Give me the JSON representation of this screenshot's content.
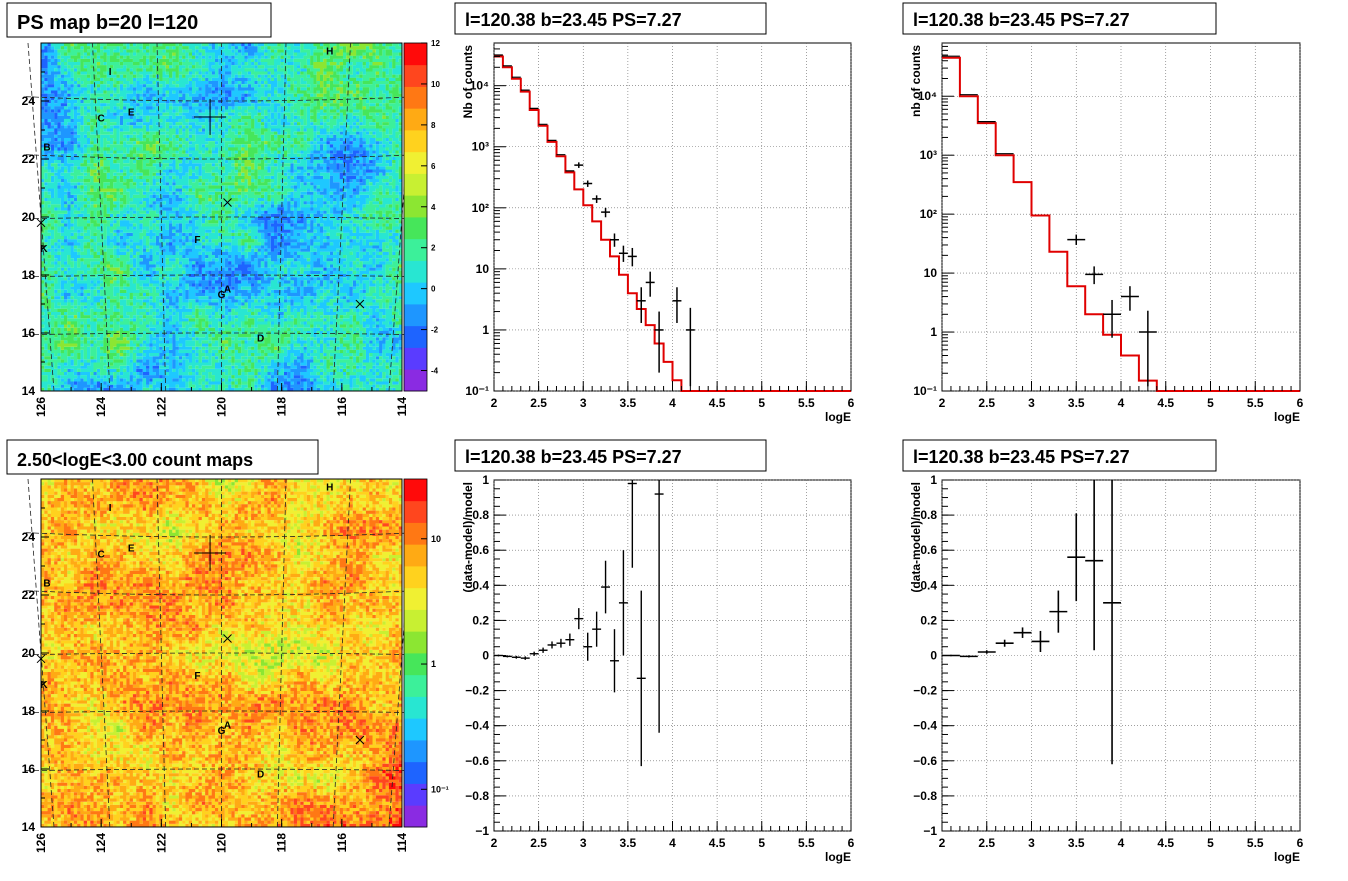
{
  "panels": {
    "ps_map": {
      "title": "PS map b=20 l=120",
      "colorbar_ticks": [
        "-4",
        "-2",
        "0",
        "2",
        "4",
        "6",
        "8",
        "10",
        "12"
      ],
      "colorbar_colors": [
        "#8a2be2",
        "#5a3cff",
        "#1e64ff",
        "#1e96ff",
        "#1ec8ff",
        "#28e6d2",
        "#3cf09a",
        "#46e65a",
        "#8ce632",
        "#c8f032",
        "#f0f032",
        "#ffd21e",
        "#ffaa14",
        "#ff7814",
        "#ff461e",
        "#ff0a0a"
      ]
    },
    "count_map": {
      "title": "2.50<logE<3.00 count maps",
      "colorbar_ticks": [
        "10",
        "1",
        "10⁻¹"
      ],
      "colorbar_colors": [
        "#8a2be2",
        "#5a3cff",
        "#1e64ff",
        "#1e96ff",
        "#1ec8ff",
        "#28e6d2",
        "#3cf09a",
        "#46e65a",
        "#8ce632",
        "#c8f032",
        "#f0f032",
        "#ffd21e",
        "#ffaa14",
        "#ff7814",
        "#ff461e",
        "#ff0a0a"
      ]
    },
    "spec1": {
      "title": "l=120.38 b=23.45 PS=7.27",
      "ylabel": "Nb of counts"
    },
    "spec2": {
      "title": "l=120.38 b=23.45 PS=7.27",
      "ylabel": "nb of counts"
    },
    "res1": {
      "title": "l=120.38 b=23.45 PS=7.27"
    },
    "res2": {
      "title": "l=120.38 b=23.45 PS=7.27"
    }
  },
  "chart_data": [
    {
      "type": "heatmap",
      "title": "PS map b=20 l=120",
      "xlim": [
        126,
        114
      ],
      "ylim": [
        14,
        26
      ],
      "x_ticks": [
        126,
        124,
        122,
        120,
        118,
        116,
        114
      ],
      "y_ticks": [
        14,
        16,
        18,
        20,
        22,
        24
      ],
      "zlim": [
        -5,
        12
      ],
      "color_scale": "linear",
      "source_labels": [
        {
          "text": "H",
          "l": 116.4,
          "b": 25.6
        },
        {
          "text": "I",
          "l": 123.7,
          "b": 24.9
        },
        {
          "text": "C",
          "l": 124.0,
          "b": 23.3
        },
        {
          "text": "E",
          "l": 123.0,
          "b": 23.5
        },
        {
          "text": "B",
          "l": 125.8,
          "b": 22.3
        },
        {
          "text": "F",
          "l": 120.8,
          "b": 19.1
        },
        {
          "text": "K",
          "l": 125.9,
          "b": 18.8
        },
        {
          "text": "A",
          "l": 119.8,
          "b": 17.4
        },
        {
          "text": "G",
          "l": 120.0,
          "b": 17.2
        },
        {
          "text": "D",
          "l": 118.7,
          "b": 15.7
        }
      ],
      "plus_marker": {
        "l": 120.38,
        "b": 23.45
      },
      "x_markers": [
        {
          "l": 119.8,
          "b": 20.5
        },
        {
          "l": 115.4,
          "b": 17.0
        },
        {
          "l": 126.0,
          "b": 19.8
        }
      ]
    },
    {
      "type": "heatmap",
      "title": "2.50<logE<3.00 count maps",
      "xlim": [
        126,
        114
      ],
      "ylim": [
        14,
        26
      ],
      "x_ticks": [
        126,
        124,
        122,
        120,
        118,
        116,
        114
      ],
      "y_ticks": [
        14,
        16,
        18,
        20,
        22,
        24
      ],
      "color_scale": "log",
      "zlim": [
        0.05,
        30
      ],
      "source_labels": [
        {
          "text": "H",
          "l": 116.4,
          "b": 25.6
        },
        {
          "text": "I",
          "l": 123.7,
          "b": 24.9
        },
        {
          "text": "C",
          "l": 124.0,
          "b": 23.3
        },
        {
          "text": "E",
          "l": 123.0,
          "b": 23.5
        },
        {
          "text": "B",
          "l": 125.8,
          "b": 22.3
        },
        {
          "text": "F",
          "l": 120.8,
          "b": 19.1
        },
        {
          "text": "K",
          "l": 125.9,
          "b": 18.8
        },
        {
          "text": "A",
          "l": 119.8,
          "b": 17.4
        },
        {
          "text": "G",
          "l": 120.0,
          "b": 17.2
        },
        {
          "text": "D",
          "l": 118.7,
          "b": 15.7
        }
      ],
      "plus_marker": {
        "l": 120.38,
        "b": 23.45
      },
      "x_markers": [
        {
          "l": 119.8,
          "b": 20.5
        },
        {
          "l": 115.4,
          "b": 17.0
        },
        {
          "l": 126.0,
          "b": 19.8
        }
      ]
    },
    {
      "type": "line",
      "title": "l=120.38 b=23.45 PS=7.27",
      "xlabel": "logE",
      "ylabel": "Nb of counts",
      "xlim": [
        2,
        6
      ],
      "ylim": [
        0.1,
        50000
      ],
      "yscale": "log",
      "grid": true,
      "x_ticks": [
        "2",
        "2.5",
        "3",
        "3.5",
        "4",
        "4.5",
        "5",
        "5.5",
        "6"
      ],
      "y_ticks": [
        {
          "v": 0.1,
          "label": "10⁻¹"
        },
        {
          "v": 1,
          "label": "1"
        },
        {
          "v": 10,
          "label": "10"
        },
        {
          "v": 100,
          "label": "10²"
        },
        {
          "v": 1000,
          "label": "10³"
        },
        {
          "v": 10000,
          "label": "10⁴"
        }
      ],
      "bin_width": 0.1,
      "model": [
        30000,
        20000,
        13000,
        8000,
        4000,
        2200,
        1200,
        700,
        380,
        200,
        110,
        60,
        30,
        16,
        8,
        4,
        2.2,
        1.2,
        0.6,
        0.3,
        0.15,
        0.1,
        0.1,
        0.1,
        0.1,
        0.1,
        0.1,
        0.1,
        0.1,
        0.1,
        0.1,
        0.1,
        0.1,
        0.1,
        0.1,
        0.1,
        0.1,
        0.1,
        0.1,
        0.1
      ],
      "data_points": [
        {
          "x": 2.95,
          "y": 500,
          "err": [
            450,
            555
          ]
        },
        {
          "x": 3.05,
          "y": 250,
          "err": [
            220,
            280
          ]
        },
        {
          "x": 3.15,
          "y": 140,
          "err": [
            120,
            160
          ]
        },
        {
          "x": 3.25,
          "y": 85,
          "err": [
            70,
            100
          ]
        },
        {
          "x": 3.35,
          "y": 30,
          "err": [
            23,
            38
          ]
        },
        {
          "x": 3.45,
          "y": 18,
          "err": [
            13,
            24
          ]
        },
        {
          "x": 3.55,
          "y": 16,
          "err": [
            11,
            22
          ]
        },
        {
          "x": 3.65,
          "y": 3,
          "err": [
            1.3,
            5
          ]
        },
        {
          "x": 3.75,
          "y": 6,
          "err": [
            3.5,
            9
          ]
        },
        {
          "x": 3.85,
          "y": 1,
          "err": [
            0.2,
            2
          ]
        },
        {
          "x": 4.05,
          "y": 3,
          "err": [
            1.3,
            5
          ]
        },
        {
          "x": 4.2,
          "y": 1,
          "err": [
            0.12,
            2.3
          ]
        }
      ]
    },
    {
      "type": "line",
      "title": "l=120.38 b=23.45 PS=7.27",
      "xlabel": "logE",
      "ylabel": "nb of counts",
      "xlim": [
        2,
        6
      ],
      "ylim": [
        0.1,
        80000
      ],
      "yscale": "log",
      "grid": true,
      "x_ticks": [
        "2",
        "2.5",
        "3",
        "3.5",
        "4",
        "4.5",
        "5",
        "5.5",
        "6"
      ],
      "y_ticks": [
        {
          "v": 0.1,
          "label": "10⁻¹"
        },
        {
          "v": 1,
          "label": "1"
        },
        {
          "v": 10,
          "label": "10"
        },
        {
          "v": 100,
          "label": "10²"
        },
        {
          "v": 1000,
          "label": "10³"
        },
        {
          "v": 10000,
          "label": "10⁴"
        }
      ],
      "bin_width": 0.2,
      "model": [
        45000,
        10000,
        3500,
        1000,
        350,
        95,
        23,
        6,
        2,
        0.9,
        0.4,
        0.15,
        0.1,
        0.1,
        0.1,
        0.1,
        0.1,
        0.1,
        0.1,
        0.1
      ],
      "data_points": [
        {
          "x": 3.5,
          "y": 37,
          "err": [
            30,
            45
          ]
        },
        {
          "x": 3.7,
          "y": 9.5,
          "err": [
            6.5,
            13
          ]
        },
        {
          "x": 3.9,
          "y": 2,
          "err": [
            0.8,
            3.5
          ]
        },
        {
          "x": 4.1,
          "y": 4,
          "err": [
            2.3,
            6
          ]
        },
        {
          "x": 4.3,
          "y": 1,
          "err": [
            0.12,
            2.3
          ]
        }
      ]
    },
    {
      "type": "scatter",
      "title": "l=120.38 b=23.45 PS=7.27",
      "xlabel": "logE",
      "ylabel": "(data-model)/model",
      "xlim": [
        2,
        6
      ],
      "ylim": [
        -1,
        1
      ],
      "grid": true,
      "x_ticks": [
        "2",
        "2.5",
        "3",
        "3.5",
        "4",
        "4.5",
        "5",
        "5.5",
        "6"
      ],
      "y_ticks": [
        "-1",
        "-0.8",
        "-0.6",
        "-0.4",
        "-0.2",
        "0",
        "0.2",
        "0.4",
        "0.6",
        "0.8",
        "1"
      ],
      "x_halfwidth": 0.05,
      "points": [
        {
          "x": 2.05,
          "y": 0.0,
          "e": 0.005
        },
        {
          "x": 2.15,
          "y": -0.005,
          "e": 0.006
        },
        {
          "x": 2.25,
          "y": -0.01,
          "e": 0.008
        },
        {
          "x": 2.35,
          "y": -0.015,
          "e": 0.01
        },
        {
          "x": 2.45,
          "y": 0.01,
          "e": 0.012
        },
        {
          "x": 2.55,
          "y": 0.03,
          "e": 0.015
        },
        {
          "x": 2.65,
          "y": 0.06,
          "e": 0.02
        },
        {
          "x": 2.75,
          "y": 0.07,
          "e": 0.025
        },
        {
          "x": 2.85,
          "y": 0.09,
          "e": 0.035
        },
        {
          "x": 2.95,
          "y": 0.21,
          "e": 0.06
        },
        {
          "x": 3.05,
          "y": 0.05,
          "e": 0.08
        },
        {
          "x": 3.15,
          "y": 0.15,
          "e": 0.1
        },
        {
          "x": 3.25,
          "y": 0.39,
          "e": 0.15
        },
        {
          "x": 3.35,
          "y": -0.03,
          "e": 0.18
        },
        {
          "x": 3.45,
          "y": 0.3,
          "e": 0.3
        },
        {
          "x": 3.55,
          "y": 0.98,
          "e": 0.48
        },
        {
          "x": 3.65,
          "y": -0.13,
          "e": 0.5
        },
        {
          "x": 3.85,
          "y": 0.92,
          "e": 1.36
        }
      ]
    },
    {
      "type": "scatter",
      "title": "l=120.38 b=23.45 PS=7.27",
      "xlabel": "logE",
      "ylabel": "(data-model)/model",
      "xlim": [
        2,
        6
      ],
      "ylim": [
        -1,
        1
      ],
      "grid": true,
      "x_ticks": [
        "2",
        "2.5",
        "3",
        "3.5",
        "4",
        "4.5",
        "5",
        "5.5",
        "6"
      ],
      "y_ticks": [
        "-1",
        "-0.8",
        "-0.6",
        "-0.4",
        "-0.2",
        "0",
        "0.2",
        "0.4",
        "0.6",
        "0.8",
        "1"
      ],
      "x_halfwidth": 0.1,
      "points": [
        {
          "x": 2.1,
          "y": 0.0,
          "e": 0.004
        },
        {
          "x": 2.3,
          "y": -0.005,
          "e": 0.006
        },
        {
          "x": 2.5,
          "y": 0.02,
          "e": 0.01
        },
        {
          "x": 2.7,
          "y": 0.07,
          "e": 0.02
        },
        {
          "x": 2.9,
          "y": 0.13,
          "e": 0.03
        },
        {
          "x": 3.1,
          "y": 0.08,
          "e": 0.06
        },
        {
          "x": 3.3,
          "y": 0.25,
          "e": 0.12
        },
        {
          "x": 3.5,
          "y": 0.56,
          "e": 0.25
        },
        {
          "x": 3.7,
          "y": 0.54,
          "e": 0.51
        },
        {
          "x": 3.9,
          "y": 0.3,
          "e": 0.92
        }
      ]
    }
  ]
}
